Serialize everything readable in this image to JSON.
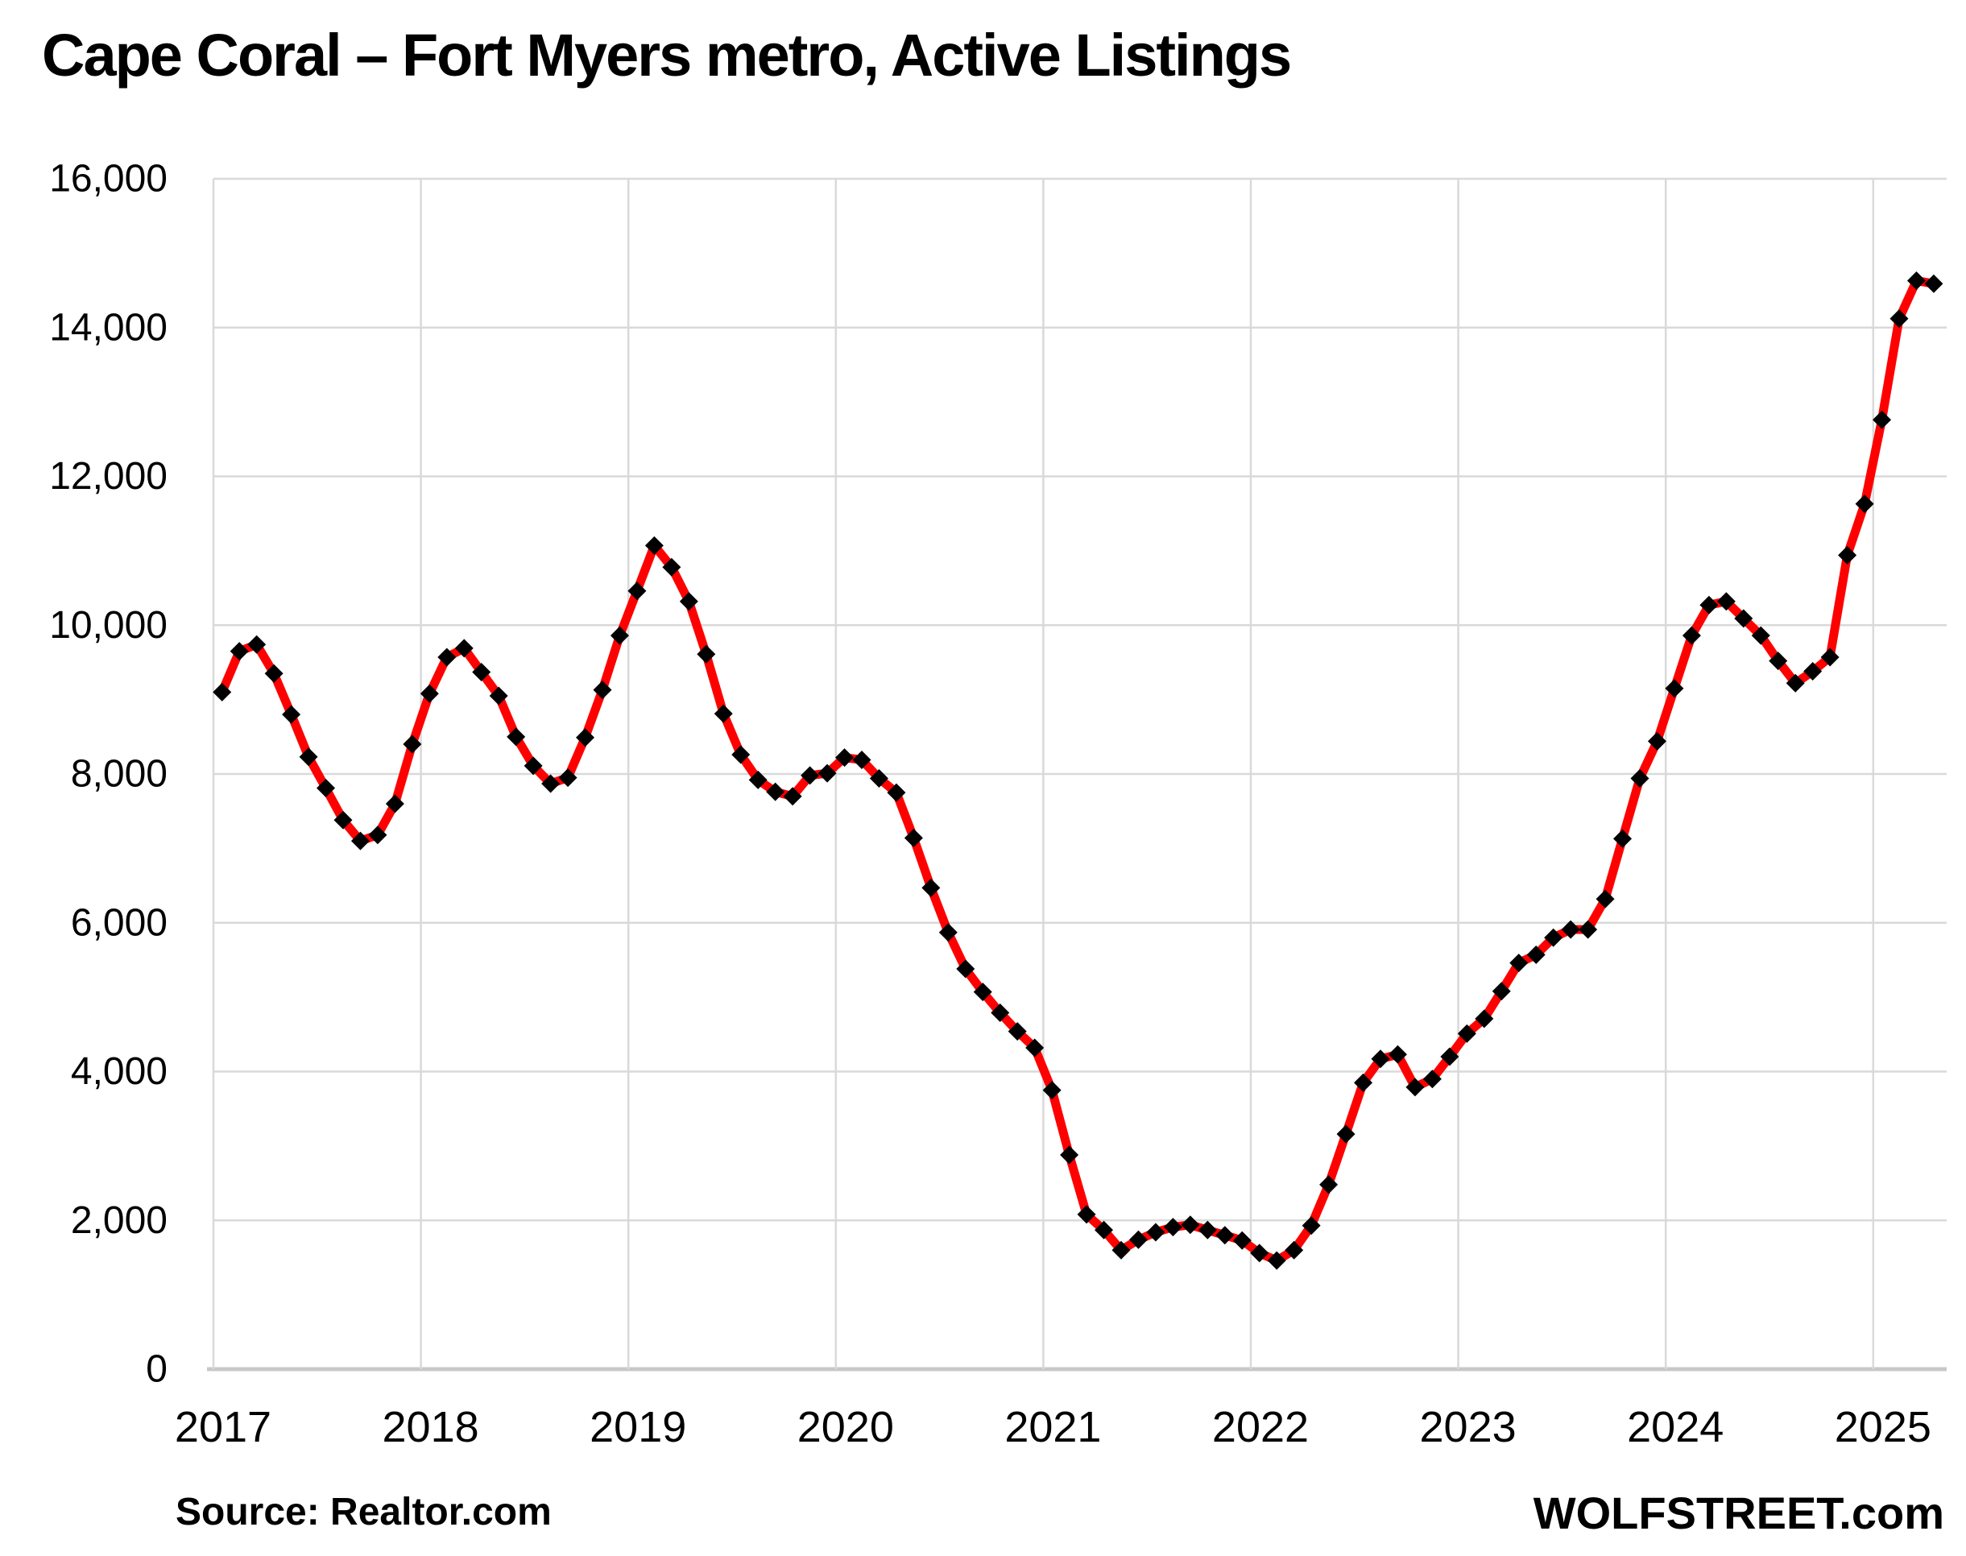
{
  "title": "Cape Coral – Fort Myers metro, Active Listings",
  "source_note": "Source: Realtor.com",
  "branding": "WOLFSTREET.com",
  "colors": {
    "line": "#ff0000",
    "marker": "#000000",
    "grid": "#d9d9d9",
    "baseline": "#c8c8c8",
    "text": "#000000",
    "background": "#ffffff"
  },
  "chart_data": {
    "type": "line",
    "title": "Cape Coral – Fort Myers metro, Active Listings",
    "xlabel": "",
    "ylabel": "",
    "legend": "none",
    "grid": "on",
    "marker": "diamond",
    "ylim": [
      0,
      16000
    ],
    "y_ticks": [
      0,
      2000,
      4000,
      6000,
      8000,
      10000,
      12000,
      14000,
      16000
    ],
    "y_tick_labels": [
      "0",
      "2,000",
      "4,000",
      "6,000",
      "8,000",
      "10,000",
      "12,000",
      "14,000",
      "16,000"
    ],
    "x_tick_labels": [
      "2017",
      "2018",
      "2019",
      "2020",
      "2021",
      "2022",
      "2023",
      "2024",
      "2025"
    ],
    "frequency": "monthly",
    "start_month": "2017-01",
    "end_month": "2025-04",
    "series": [
      {
        "name": "Active Listings",
        "values": [
          9100,
          9650,
          9740,
          9350,
          8800,
          8230,
          7810,
          7380,
          7100,
          7180,
          7600,
          8400,
          9080,
          9570,
          9690,
          9370,
          9050,
          8500,
          8110,
          7870,
          7950,
          8490,
          9130,
          9860,
          10460,
          11070,
          10780,
          10320,
          9610,
          8810,
          8260,
          7920,
          7760,
          7700,
          7980,
          8010,
          8220,
          8190,
          7940,
          7750,
          7140,
          6470,
          5870,
          5380,
          5070,
          4790,
          4540,
          4320,
          3750,
          2880,
          2080,
          1870,
          1600,
          1740,
          1840,
          1910,
          1940,
          1870,
          1800,
          1730,
          1560,
          1460,
          1600,
          1930,
          2480,
          3160,
          3850,
          4170,
          4230,
          3790,
          3900,
          4200,
          4510,
          4710,
          5080,
          5460,
          5570,
          5800,
          5910,
          5910,
          6320,
          7130,
          7940,
          8440,
          9150,
          9860,
          10270,
          10320,
          10090,
          9860,
          9520,
          9220,
          9380,
          9570,
          10940,
          11630,
          12760,
          14120,
          14630,
          14590
        ]
      }
    ]
  }
}
